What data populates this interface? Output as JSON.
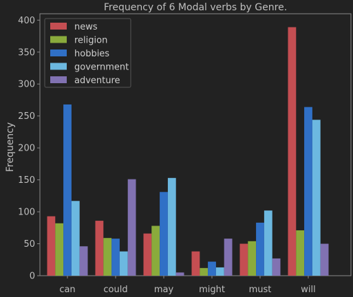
{
  "chart_data": {
    "type": "bar",
    "title": "Frequency of 6 Modal verbs by Genre.",
    "xlabel": "",
    "ylabel": "Frequency",
    "ylim": [
      0,
      410
    ],
    "yticks": [
      0,
      50,
      100,
      150,
      200,
      250,
      300,
      350,
      400
    ],
    "categories": [
      "can",
      "could",
      "may",
      "might",
      "must",
      "will"
    ],
    "legend_position": "top-left",
    "grid": false,
    "series": [
      {
        "name": "news",
        "color": "#c44e52",
        "values": [
          93,
          86,
          66,
          38,
          50,
          389
        ]
      },
      {
        "name": "religion",
        "color": "#8aab3c",
        "values": [
          82,
          59,
          78,
          12,
          54,
          71
        ]
      },
      {
        "name": "hobbies",
        "color": "#3070c6",
        "values": [
          268,
          58,
          131,
          22,
          83,
          264
        ]
      },
      {
        "name": "government",
        "color": "#6cb8e0",
        "values": [
          117,
          38,
          153,
          13,
          102,
          244
        ]
      },
      {
        "name": "adventure",
        "color": "#8172b2",
        "values": [
          46,
          151,
          5,
          58,
          27,
          50
        ]
      }
    ]
  }
}
